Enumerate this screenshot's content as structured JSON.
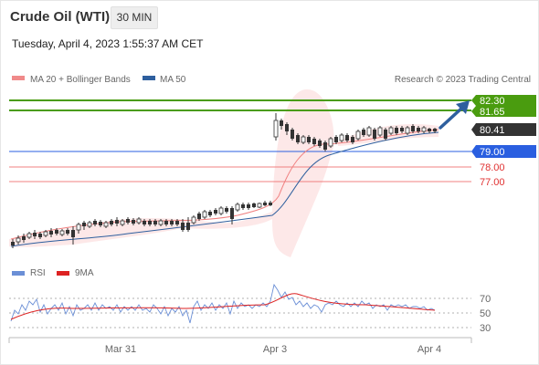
{
  "header": {
    "title": "Crude Oil (WTI)",
    "interval": "30 MIN",
    "datetime": "Tuesday, April 4, 2023 1:55:37 AM CET"
  },
  "legend": {
    "ma20_label": "MA 20 + Bollinger Bands",
    "ma50_label": "MA 50",
    "credit": "Research © 2023 Trading Central",
    "rsi_label": "RSI",
    "ma9_label": "9MA"
  },
  "price_levels": {
    "target_2": "82.30",
    "target_1": "81.65",
    "last_price": "80.41",
    "pivot": "79.00",
    "support_1": "78.00",
    "support_2": "77.00"
  },
  "rsi_axis": [
    "70",
    "50",
    "30"
  ],
  "x_axis": [
    "Mar 31",
    "Apr 3",
    "Apr 4"
  ],
  "colors": {
    "green": "#4a9c0f",
    "blue": "#2a5fe0",
    "red": "#f08080",
    "dark": "#333333",
    "arrow": "#2e5f9e"
  }
}
